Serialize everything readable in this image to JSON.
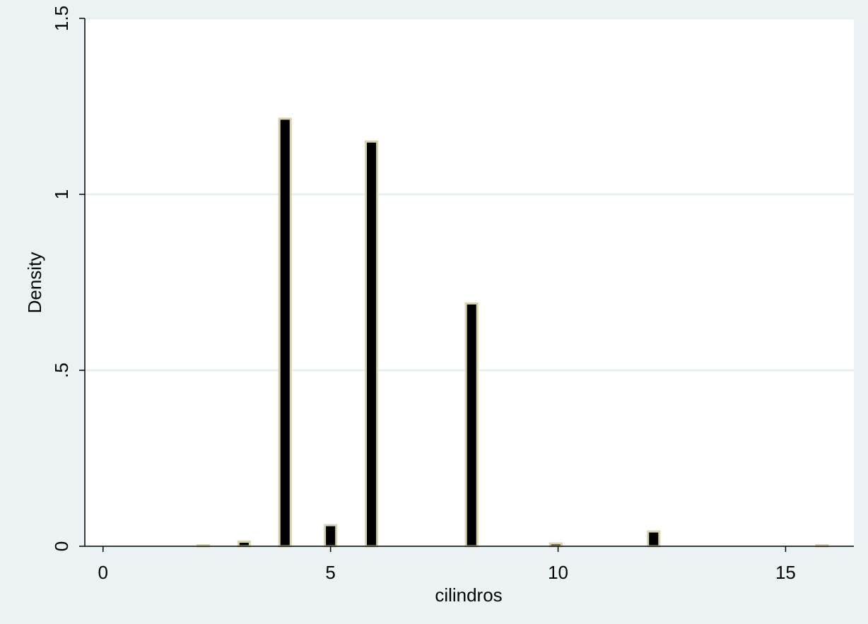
{
  "chart_data": {
    "type": "bar",
    "xlabel": "cilindros",
    "ylabel": "Density",
    "xlim": [
      -0.4,
      16.5
    ],
    "ylim": [
      0,
      1.5
    ],
    "x_ticks": [
      {
        "value": 0,
        "label": "0"
      },
      {
        "value": 5,
        "label": "5"
      },
      {
        "value": 10,
        "label": "10"
      },
      {
        "value": 15,
        "label": "15"
      }
    ],
    "y_ticks": [
      {
        "value": 0,
        "label": "0"
      },
      {
        "value": 0.5,
        "label": ".5"
      },
      {
        "value": 1,
        "label": "1"
      },
      {
        "value": 1.5,
        "label": "1.5"
      }
    ],
    "grid": true,
    "bar_width": 0.25,
    "x": [
      2.2,
      3.1,
      4.0,
      5.0,
      5.9,
      8.1,
      9.95,
      12.1,
      15.8
    ],
    "values": [
      0.002,
      0.013,
      1.215,
      0.06,
      1.15,
      0.69,
      0.008,
      0.042,
      0.001
    ],
    "colors": {
      "bar_fill": "#000000",
      "bar_outline": "#d8d2b0",
      "plot_bg": "#ffffff",
      "page_bg": "#eaf2f3",
      "grid": "#e8eef0"
    }
  }
}
